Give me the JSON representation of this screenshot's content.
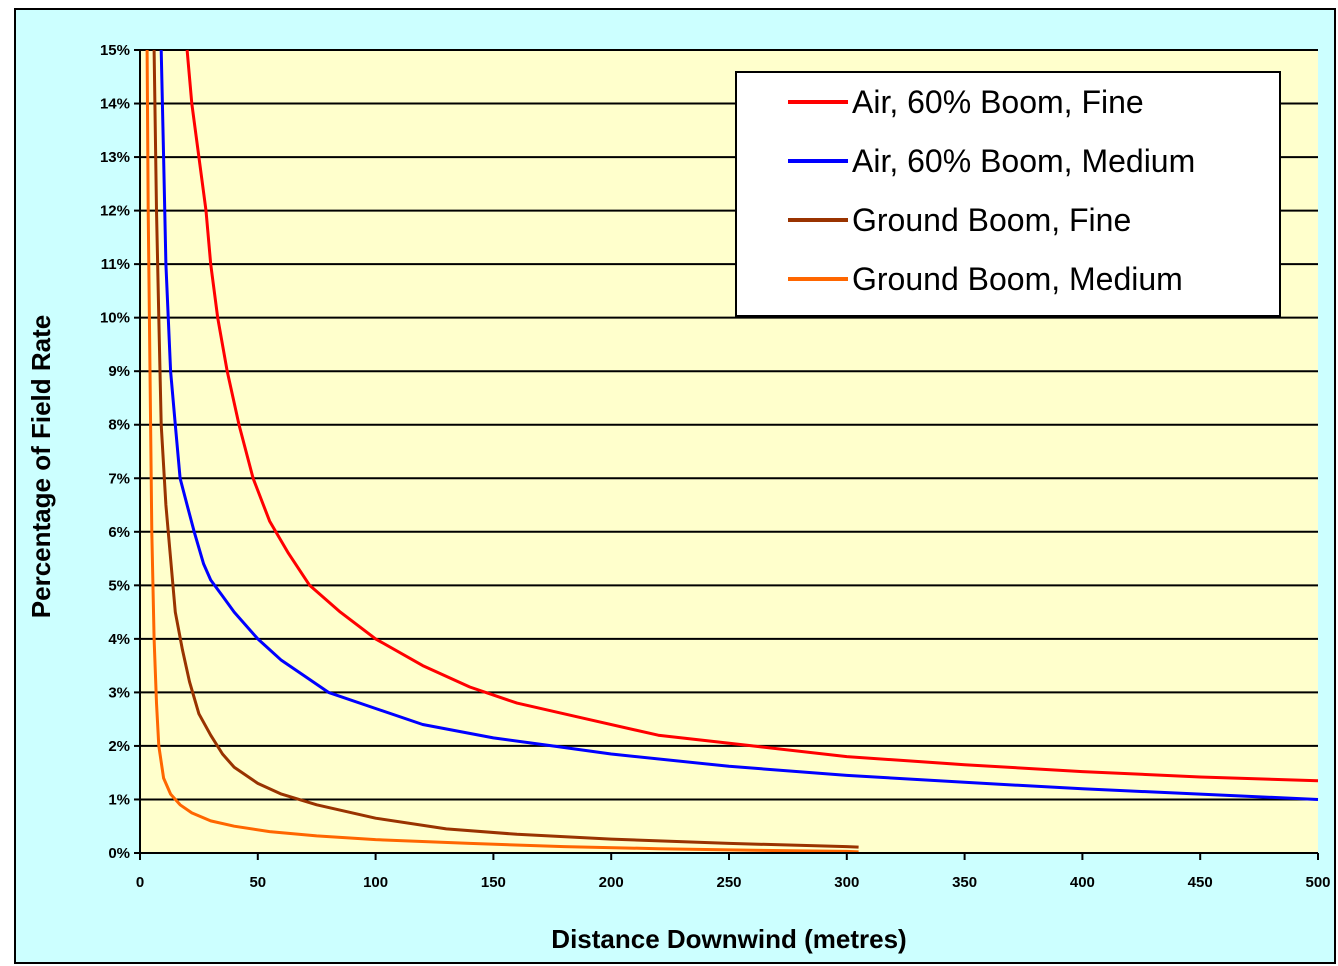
{
  "chart_data": {
    "type": "line",
    "xlabel": "Distance Downwind (metres)",
    "ylabel": "Percentage of Field Rate",
    "xlim": [
      0,
      500
    ],
    "ylim": [
      0,
      15
    ],
    "x_ticks": [
      "0",
      "50",
      "100",
      "150",
      "200",
      "250",
      "300",
      "350",
      "400",
      "450",
      "500"
    ],
    "y_ticks": [
      "0%",
      "1%",
      "2%",
      "3%",
      "4%",
      "5%",
      "6%",
      "7%",
      "8%",
      "9%",
      "10%",
      "11%",
      "12%",
      "13%",
      "14%",
      "15%"
    ],
    "grid": "horizontal",
    "legend_position": "top-right",
    "plot_background": "#ffffcc",
    "frame_background": "#ccffff",
    "series": [
      {
        "name": "Air, 60% Boom, Fine",
        "color": "#ff0000",
        "points": [
          [
            20,
            15
          ],
          [
            22,
            14
          ],
          [
            25,
            13
          ],
          [
            28,
            12
          ],
          [
            30,
            11
          ],
          [
            33,
            10
          ],
          [
            37,
            9
          ],
          [
            42,
            8
          ],
          [
            48,
            7
          ],
          [
            55,
            6.2
          ],
          [
            63,
            5.6
          ],
          [
            72,
            5
          ],
          [
            85,
            4.5
          ],
          [
            100,
            4
          ],
          [
            120,
            3.5
          ],
          [
            140,
            3.1
          ],
          [
            160,
            2.8
          ],
          [
            190,
            2.5
          ],
          [
            220,
            2.2
          ],
          [
            260,
            2
          ],
          [
            300,
            1.8
          ],
          [
            350,
            1.65
          ],
          [
            400,
            1.52
          ],
          [
            450,
            1.42
          ],
          [
            500,
            1.35
          ]
        ]
      },
      {
        "name": "Air, 60% Boom, Medium",
        "color": "#0000ff",
        "points": [
          [
            9,
            15
          ],
          [
            10,
            13
          ],
          [
            11,
            11
          ],
          [
            13,
            9
          ],
          [
            15,
            8
          ],
          [
            17,
            7
          ],
          [
            20,
            6.5
          ],
          [
            23,
            6
          ],
          [
            27,
            5.4
          ],
          [
            30,
            5.1
          ],
          [
            35,
            4.8
          ],
          [
            40,
            4.5
          ],
          [
            50,
            4
          ],
          [
            60,
            3.6
          ],
          [
            70,
            3.3
          ],
          [
            80,
            3
          ],
          [
            100,
            2.7
          ],
          [
            120,
            2.4
          ],
          [
            150,
            2.15
          ],
          [
            175,
            2
          ],
          [
            200,
            1.85
          ],
          [
            250,
            1.62
          ],
          [
            300,
            1.45
          ],
          [
            350,
            1.32
          ],
          [
            400,
            1.2
          ],
          [
            450,
            1.1
          ],
          [
            500,
            1
          ]
        ]
      },
      {
        "name": "Ground Boom, Fine",
        "color": "#993300",
        "points": [
          [
            6,
            15
          ],
          [
            7,
            12
          ],
          [
            8,
            10
          ],
          [
            9,
            8
          ],
          [
            11,
            6.5
          ],
          [
            13,
            5.5
          ],
          [
            15,
            4.5
          ],
          [
            18,
            3.8
          ],
          [
            21,
            3.2
          ],
          [
            25,
            2.6
          ],
          [
            30,
            2.2
          ],
          [
            35,
            1.85
          ],
          [
            40,
            1.6
          ],
          [
            50,
            1.3
          ],
          [
            60,
            1.1
          ],
          [
            75,
            0.9
          ],
          [
            100,
            0.65
          ],
          [
            130,
            0.45
          ],
          [
            160,
            0.35
          ],
          [
            200,
            0.26
          ],
          [
            250,
            0.18
          ],
          [
            300,
            0.12
          ],
          [
            305,
            0.11
          ]
        ]
      },
      {
        "name": "Ground Boom, Medium",
        "color": "#ff6600",
        "points": [
          [
            3,
            15
          ],
          [
            3.5,
            12
          ],
          [
            4,
            10
          ],
          [
            4.5,
            8
          ],
          [
            5,
            6
          ],
          [
            6,
            4
          ],
          [
            7,
            2.8
          ],
          [
            8,
            2
          ],
          [
            10,
            1.4
          ],
          [
            13,
            1.1
          ],
          [
            17,
            0.9
          ],
          [
            22,
            0.75
          ],
          [
            30,
            0.6
          ],
          [
            40,
            0.5
          ],
          [
            55,
            0.4
          ],
          [
            75,
            0.32
          ],
          [
            100,
            0.25
          ],
          [
            140,
            0.18
          ],
          [
            180,
            0.12
          ],
          [
            220,
            0.08
          ],
          [
            260,
            0.05
          ],
          [
            300,
            0.03
          ],
          [
            305,
            0.02
          ]
        ]
      }
    ]
  }
}
